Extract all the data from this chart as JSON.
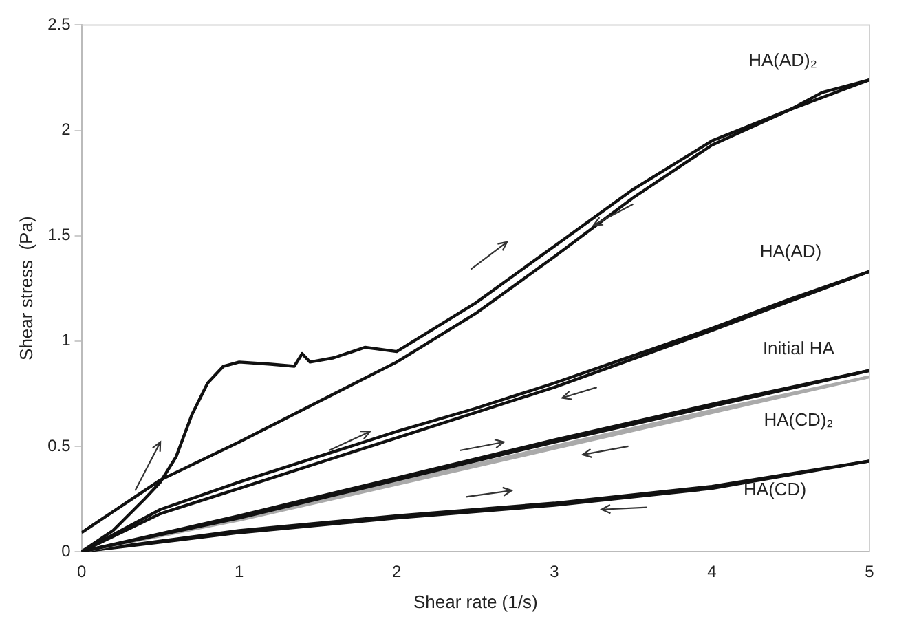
{
  "chart_data": {
    "type": "line",
    "xlabel": "Shear rate (1/s)",
    "ylabel": "Shear stress  (Pa)",
    "xlim": [
      0,
      5
    ],
    "ylim": [
      0,
      2.5
    ],
    "xticks": [
      0,
      1,
      2,
      3,
      4,
      5
    ],
    "yticks": [
      0,
      0.5,
      1,
      1.5,
      2,
      2.5
    ],
    "grid": false,
    "legend": false,
    "marker": "none",
    "line_style": "solid",
    "series": [
      {
        "name": "HA(AD)₂",
        "color": "#111111",
        "x": [
          0,
          0.2,
          0.4,
          0.5,
          0.6,
          0.7,
          0.8,
          0.9,
          1,
          1.2,
          1.35,
          1.4,
          1.45,
          1.6,
          1.8,
          2,
          2.5,
          3,
          3.5,
          4,
          4.5,
          4.7,
          5
        ],
        "values": [
          0,
          0.1,
          0.25,
          0.33,
          0.45,
          0.65,
          0.8,
          0.88,
          0.9,
          0.89,
          0.88,
          0.94,
          0.9,
          0.92,
          0.97,
          0.95,
          1.18,
          1.45,
          1.72,
          1.95,
          2.1,
          2.18,
          2.24
        ]
      },
      {
        "color": "#111111",
        "x": [
          0,
          0.5,
          1,
          1.5,
          2,
          2.5,
          3,
          3.5,
          4,
          4.5,
          5
        ],
        "values": [
          0.09,
          0.34,
          0.52,
          0.71,
          0.9,
          1.13,
          1.4,
          1.68,
          1.93,
          2.1,
          2.24
        ]
      },
      {
        "name": "HA(AD)",
        "color": "#111111",
        "x": [
          0,
          0.5,
          1,
          1.5,
          2,
          2.5,
          3,
          3.5,
          4,
          4.5,
          5
        ],
        "values": [
          0,
          0.2,
          0.33,
          0.45,
          0.57,
          0.68,
          0.8,
          0.93,
          1.06,
          1.2,
          1.33
        ]
      },
      {
        "color": "#111111",
        "x": [
          0,
          0.5,
          1,
          2,
          3,
          4,
          5
        ],
        "values": [
          0,
          0.18,
          0.3,
          0.54,
          0.78,
          1.05,
          1.33
        ]
      },
      {
        "name": "Initial HA",
        "color": "#111111",
        "x": [
          0,
          1,
          2,
          3,
          4,
          5
        ],
        "values": [
          0,
          0.17,
          0.35,
          0.53,
          0.7,
          0.86
        ]
      },
      {
        "color": "#111111",
        "x": [
          0,
          1,
          2,
          3,
          4,
          5
        ],
        "values": [
          0,
          0.16,
          0.34,
          0.52,
          0.69,
          0.86
        ]
      },
      {
        "name": "HA(CD)₂",
        "color": "#aaaaaa",
        "x": [
          0,
          1,
          2,
          3,
          4,
          5
        ],
        "values": [
          0,
          0.16,
          0.33,
          0.5,
          0.67,
          0.83
        ]
      },
      {
        "color": "#aaaaaa",
        "x": [
          0,
          1,
          2,
          3,
          4,
          5
        ],
        "values": [
          0,
          0.15,
          0.32,
          0.49,
          0.66,
          0.83
        ]
      },
      {
        "name": "HA(CD)",
        "color": "#111111",
        "x": [
          0,
          0.5,
          1,
          2,
          3,
          4,
          5
        ],
        "values": [
          0,
          0.05,
          0.1,
          0.17,
          0.23,
          0.31,
          0.43
        ]
      },
      {
        "color": "#111111",
        "x": [
          0,
          1,
          2,
          3,
          4,
          5
        ],
        "values": [
          0,
          0.09,
          0.16,
          0.22,
          0.3,
          0.43
        ]
      }
    ]
  }
}
